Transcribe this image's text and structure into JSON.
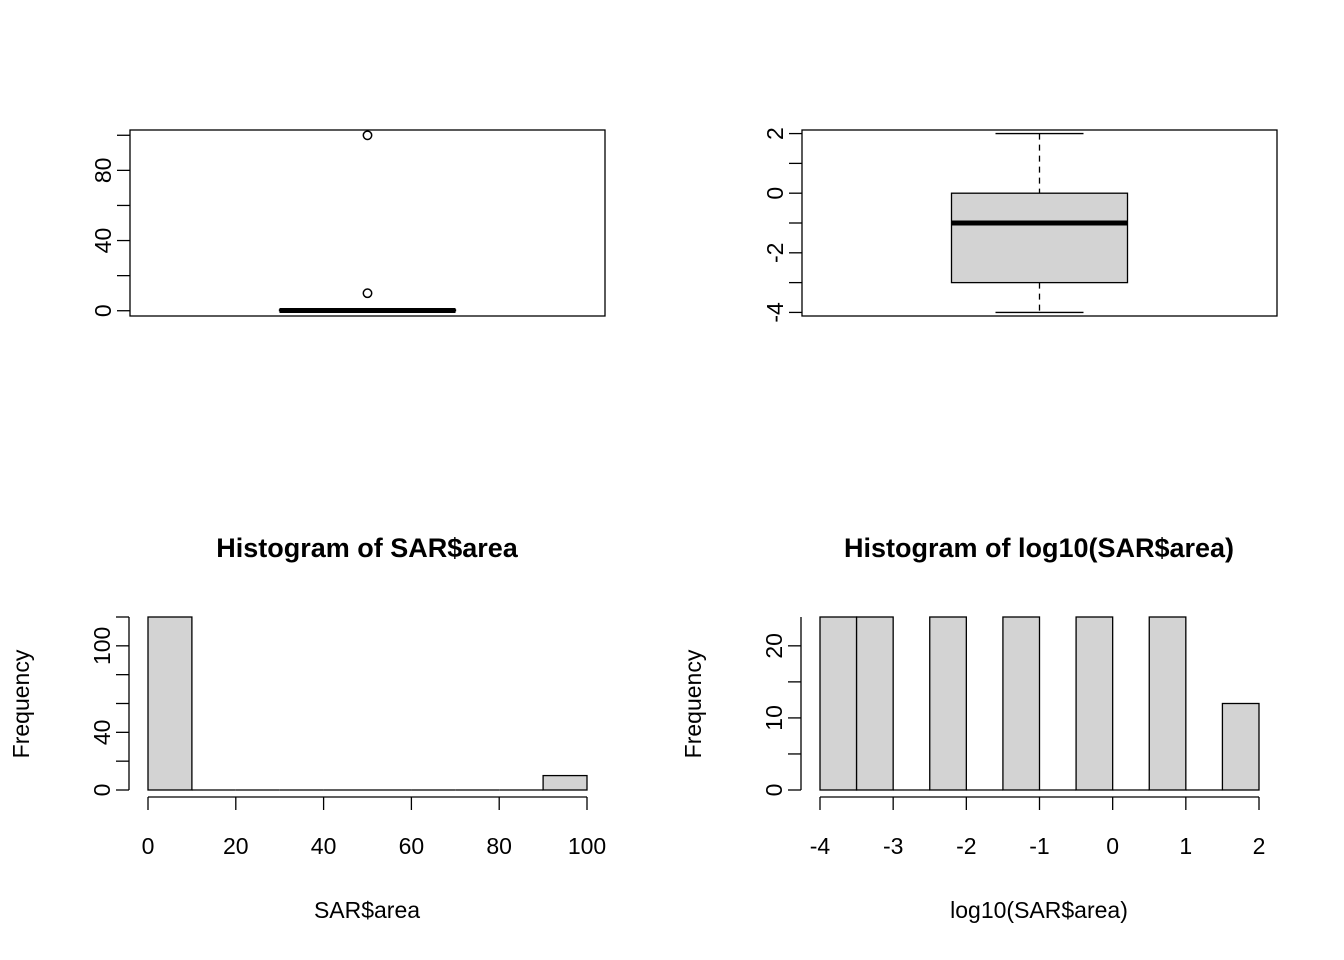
{
  "colors": {
    "fill": "#d3d3d3",
    "stroke": "#000000",
    "background": "#ffffff"
  },
  "chart_data": [
    {
      "type": "boxplot",
      "title": "",
      "ylim": [
        -3,
        103
      ],
      "yticks": [
        0,
        40,
        80
      ],
      "yminor": [
        20,
        60,
        100
      ],
      "stats": {
        "lower_whisker": 0,
        "q1": 0,
        "median": 0.1,
        "q3": 0.5,
        "upper_whisker": 1
      },
      "outliers": [
        10,
        100
      ]
    },
    {
      "type": "boxplot",
      "title": "",
      "ylim": [
        -4.12,
        2.12
      ],
      "yticks": [
        -4,
        -2,
        0,
        2
      ],
      "yminor": [
        -3,
        -1,
        1
      ],
      "stats": {
        "lower_whisker": -4,
        "q1": -3,
        "median": -1,
        "q3": 0,
        "upper_whisker": 2
      },
      "outliers": []
    },
    {
      "type": "bar",
      "title": "Histogram of SAR$area",
      "xlabel": "SAR$area",
      "ylabel": "Frequency",
      "xlim": [
        0,
        100
      ],
      "ylim": [
        0,
        120
      ],
      "xticks": [
        0,
        20,
        40,
        60,
        80,
        100
      ],
      "yticks": [
        0,
        40,
        100
      ],
      "yminor": [
        20,
        60,
        80,
        120
      ],
      "bins": [
        {
          "from": 0,
          "to": 10,
          "count": 120
        },
        {
          "from": 10,
          "to": 20,
          "count": 0
        },
        {
          "from": 20,
          "to": 30,
          "count": 0
        },
        {
          "from": 30,
          "to": 40,
          "count": 0
        },
        {
          "from": 40,
          "to": 50,
          "count": 0
        },
        {
          "from": 50,
          "to": 60,
          "count": 0
        },
        {
          "from": 60,
          "to": 70,
          "count": 0
        },
        {
          "from": 70,
          "to": 80,
          "count": 0
        },
        {
          "from": 80,
          "to": 90,
          "count": 0
        },
        {
          "from": 90,
          "to": 100,
          "count": 10
        }
      ]
    },
    {
      "type": "bar",
      "title": "Histogram of log10(SAR$area)",
      "xlabel": "log10(SAR$area)",
      "ylabel": "Frequency",
      "xlim": [
        -4,
        2
      ],
      "ylim": [
        0,
        24
      ],
      "xticks": [
        -4,
        -3,
        -2,
        -1,
        0,
        1,
        2
      ],
      "yticks": [
        0,
        10,
        20
      ],
      "yminor": [
        5,
        15
      ],
      "bins": [
        {
          "from": -4,
          "to": -3.5,
          "count": 24
        },
        {
          "from": -3.5,
          "to": -3,
          "count": 24
        },
        {
          "from": -3,
          "to": -2.5,
          "count": 0
        },
        {
          "from": -2.5,
          "to": -2,
          "count": 24
        },
        {
          "from": -2,
          "to": -1.5,
          "count": 0
        },
        {
          "from": -1.5,
          "to": -1,
          "count": 24
        },
        {
          "from": -1,
          "to": -0.5,
          "count": 0
        },
        {
          "from": -0.5,
          "to": 0,
          "count": 24
        },
        {
          "from": 0,
          "to": 0.5,
          "count": 0
        },
        {
          "from": 0.5,
          "to": 1,
          "count": 24
        },
        {
          "from": 1,
          "to": 1.5,
          "count": 0
        },
        {
          "from": 1.5,
          "to": 2,
          "count": 12
        }
      ]
    }
  ]
}
